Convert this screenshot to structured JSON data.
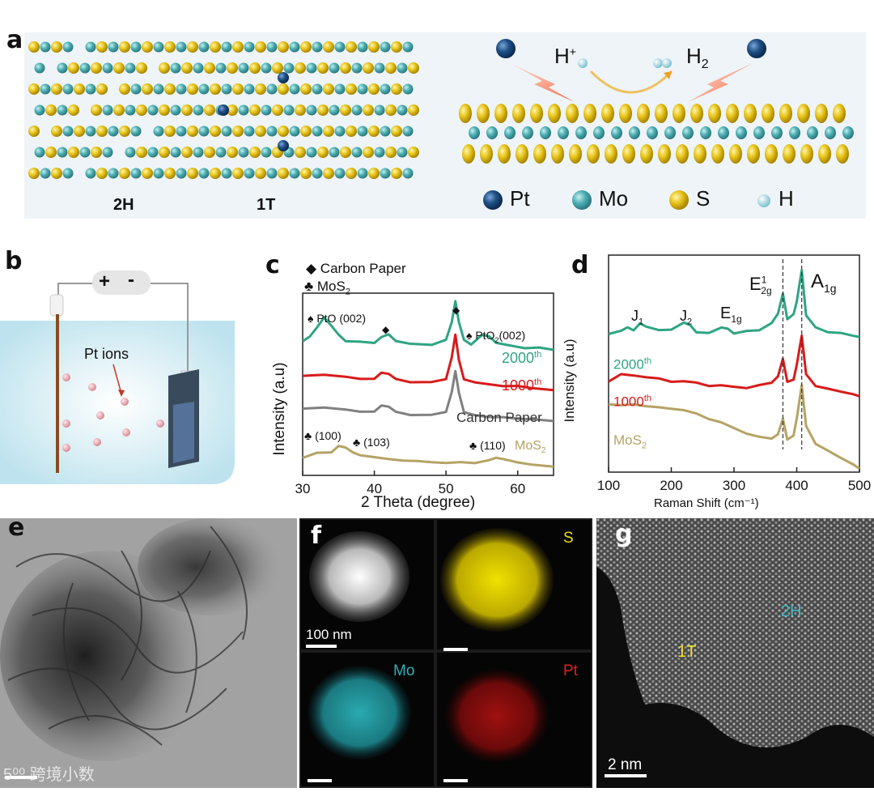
{
  "panel_a": {
    "label": "a",
    "label_2h": "2H",
    "label_1t": "1T",
    "proton": "H",
    "proton_sup": "+",
    "h2": "H",
    "h2_sub": "2",
    "legend": [
      {
        "symbol": "Pt",
        "color": "#1f4f85"
      },
      {
        "symbol": "Mo",
        "color": "#4fb0b4"
      },
      {
        "symbol": "S",
        "color": "#e8c41a"
      },
      {
        "symbol": "H",
        "color": "#a9dbe3"
      }
    ]
  },
  "panel_b": {
    "label": "b",
    "plus": "+",
    "minus": "-",
    "pt_ions": "Pt ions"
  },
  "panel_c": {
    "label": "c",
    "legend_diamond": "◆ Carbon Paper",
    "legend_club": "♣ MoS",
    "legend_club_sub": "2",
    "ann_pto": "♠ PtO (002)",
    "ann_diamond1": "◆",
    "ann_diamond2": "◆",
    "ann_pto2": "♠ PtO",
    "ann_pto2_sub": "2",
    "ann_pto2_tail": "(002)",
    "ann_100": "♣ (100)",
    "ann_103": "♣ (103)",
    "ann_110": "♣ (110)",
    "s2000": "2000",
    "s2000_sup": "th",
    "s1000": "1000",
    "s1000_sup": "th",
    "scp": "Carbon Paper",
    "smos": "MoS",
    "smos_sub": "2"
  },
  "panel_d": {
    "label": "d",
    "j1": "J",
    "j1_sub": "1",
    "j2": "J",
    "j2_sub": "2",
    "e1g": "E",
    "e1g_sub": "1g",
    "e2g": "E",
    "e2g_sup": "1",
    "e2g_sub": "2g",
    "a1g": "A",
    "a1g_sub": "1g",
    "s2000": "2000",
    "s2000_sup": "th",
    "s1000": "1000",
    "s1000_sup": "th",
    "smos": "MoS",
    "smos_sub": "2"
  },
  "panel_e": {
    "label": "e",
    "watermark": "5⁰⁰ 跨境小数"
  },
  "panel_f": {
    "label": "f",
    "s": "S",
    "mo": "Mo",
    "pt": "Pt",
    "scale": "100 nm"
  },
  "panel_g": {
    "label": "g",
    "t1": "1T",
    "h2": "2H",
    "scale": "2 nm"
  },
  "chart_data": [
    {
      "type": "line",
      "panel": "c",
      "xlabel": "2 Theta (degree)",
      "ylabel": "Intensity (a.u)",
      "xlim": [
        30,
        65
      ],
      "xticks": [
        30,
        40,
        50,
        60
      ],
      "series": [
        {
          "name": "2000th",
          "color": "#2ea583",
          "x": [
            30,
            31,
            32,
            33,
            34,
            35,
            36,
            38,
            40,
            41,
            42,
            43,
            45,
            48,
            50,
            50.8,
            51.3,
            51.8,
            52.5,
            53.5,
            55,
            56,
            57,
            59,
            61,
            63,
            65
          ],
          "y": [
            0.74,
            0.76,
            0.81,
            0.87,
            0.82,
            0.77,
            0.74,
            0.73,
            0.73,
            0.76,
            0.77,
            0.74,
            0.72,
            0.72,
            0.74,
            0.84,
            0.96,
            0.84,
            0.74,
            0.72,
            0.77,
            0.76,
            0.73,
            0.71,
            0.7,
            0.7,
            0.69
          ]
        },
        {
          "name": "1000th",
          "color": "#d81b1b",
          "x": [
            30,
            33,
            36,
            38,
            40,
            41,
            42,
            43,
            45,
            48,
            50,
            50.8,
            51.3,
            51.8,
            52.5,
            54,
            56,
            58,
            60,
            62,
            65
          ],
          "y": [
            0.55,
            0.55,
            0.54,
            0.53,
            0.53,
            0.56,
            0.56,
            0.53,
            0.51,
            0.51,
            0.53,
            0.65,
            0.77,
            0.63,
            0.53,
            0.51,
            0.5,
            0.49,
            0.49,
            0.48,
            0.47
          ]
        },
        {
          "name": "Carbon Paper",
          "color": "#808080",
          "x": [
            30,
            33,
            36,
            38,
            40,
            41,
            42,
            43,
            45,
            48,
            50,
            50.8,
            51.3,
            51.8,
            52.5,
            54,
            56,
            58,
            60,
            62,
            65
          ],
          "y": [
            0.37,
            0.37,
            0.36,
            0.35,
            0.35,
            0.38,
            0.38,
            0.35,
            0.33,
            0.33,
            0.35,
            0.46,
            0.57,
            0.45,
            0.35,
            0.33,
            0.32,
            0.32,
            0.31,
            0.31,
            0.3
          ]
        },
        {
          "name": "MoS2",
          "color": "#b5a365",
          "x": [
            30,
            32,
            34,
            35,
            36,
            37,
            38,
            40,
            42,
            44,
            46,
            48,
            50,
            52,
            54,
            56,
            57,
            58,
            60,
            62,
            65
          ],
          "y": [
            0.1,
            0.12,
            0.13,
            0.16,
            0.15,
            0.13,
            0.11,
            0.1,
            0.09,
            0.08,
            0.08,
            0.07,
            0.07,
            0.07,
            0.07,
            0.08,
            0.1,
            0.09,
            0.07,
            0.06,
            0.05
          ]
        }
      ]
    },
    {
      "type": "line",
      "panel": "d",
      "xlabel": "Raman Shift (cm⁻¹)",
      "ylabel": "Intensity (a.u)",
      "xlim": [
        100,
        500
      ],
      "xticks": [
        100,
        200,
        300,
        400,
        500
      ],
      "series": [
        {
          "name": "2000th",
          "color": "#2ea583",
          "x": [
            100,
            120,
            130,
            140,
            150,
            160,
            180,
            200,
            220,
            230,
            240,
            260,
            280,
            290,
            300,
            320,
            340,
            360,
            370,
            378,
            385,
            395,
            400,
            408,
            415,
            430,
            450,
            470,
            490,
            500
          ],
          "y": [
            0.67,
            0.68,
            0.7,
            0.69,
            0.72,
            0.7,
            0.69,
            0.69,
            0.72,
            0.71,
            0.68,
            0.67,
            0.7,
            0.69,
            0.67,
            0.68,
            0.69,
            0.72,
            0.77,
            0.86,
            0.74,
            0.76,
            0.82,
            0.98,
            0.76,
            0.7,
            0.68,
            0.67,
            0.66,
            0.65
          ]
        },
        {
          "name": "1000th",
          "color": "#d81b1b",
          "x": [
            100,
            120,
            140,
            160,
            180,
            200,
            220,
            240,
            260,
            280,
            300,
            320,
            340,
            360,
            370,
            378,
            385,
            395,
            400,
            408,
            415,
            430,
            450,
            470,
            490,
            500
          ],
          "y": [
            0.44,
            0.47,
            0.47,
            0.46,
            0.45,
            0.44,
            0.44,
            0.43,
            0.42,
            0.42,
            0.41,
            0.41,
            0.42,
            0.43,
            0.46,
            0.55,
            0.44,
            0.45,
            0.52,
            0.66,
            0.47,
            0.42,
            0.4,
            0.39,
            0.38,
            0.37
          ]
        },
        {
          "name": "MoS2",
          "color": "#b5a365",
          "x": [
            100,
            120,
            140,
            160,
            180,
            200,
            220,
            240,
            260,
            280,
            300,
            320,
            340,
            360,
            370,
            378,
            385,
            395,
            400,
            408,
            415,
            430,
            450,
            470,
            490,
            500
          ],
          "y": [
            0.33,
            0.32,
            0.33,
            0.32,
            0.31,
            0.31,
            0.3,
            0.28,
            0.26,
            0.24,
            0.21,
            0.19,
            0.17,
            0.16,
            0.18,
            0.26,
            0.16,
            0.18,
            0.26,
            0.42,
            0.22,
            0.14,
            0.1,
            0.07,
            0.04,
            0.02
          ]
        }
      ]
    }
  ]
}
